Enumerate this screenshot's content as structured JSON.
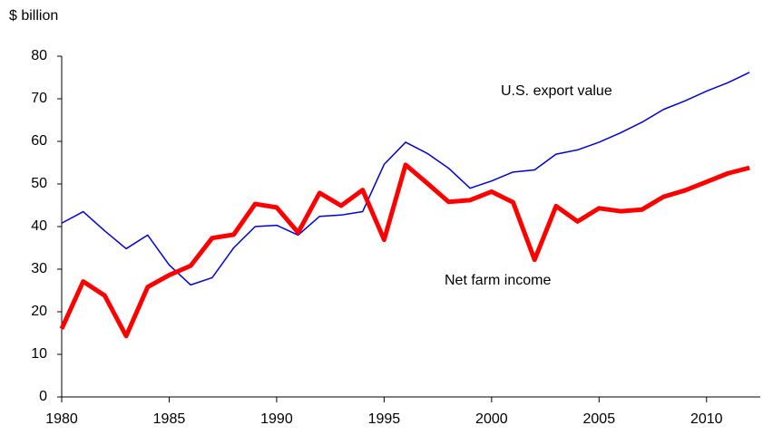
{
  "chart_data": {
    "type": "line",
    "y_label": "$ billion",
    "x": [
      1980,
      1981,
      1982,
      1983,
      1984,
      1985,
      1986,
      1987,
      1988,
      1989,
      1990,
      1991,
      1992,
      1993,
      1994,
      1995,
      1996,
      1997,
      1998,
      1999,
      2000,
      2001,
      2002,
      2003,
      2004,
      2005,
      2006,
      2007,
      2008,
      2009,
      2010,
      2011,
      2012
    ],
    "series": [
      {
        "name": "U.S. export value",
        "color": "#0000dd",
        "width": 1.5,
        "values": [
          40.8,
          43.5,
          39,
          34.8,
          38,
          31,
          26.3,
          28,
          35,
          40,
          40.3,
          38,
          42.4,
          42.7,
          43.5,
          54.6,
          59.8,
          57.2,
          53.7,
          49,
          50.7,
          52.8,
          53.3,
          57,
          58,
          59.8,
          62,
          64.5,
          67.5,
          69.5,
          71.8,
          73.8,
          76.2
        ]
      },
      {
        "name": "Net farm income",
        "color": "#ff0000",
        "width": 5,
        "values": [
          16,
          27.1,
          23.8,
          14.3,
          25.8,
          28.6,
          30.8,
          37.3,
          38.1,
          45.3,
          44.5,
          38.6,
          47.9,
          44.9,
          48.6,
          36.9,
          54.5,
          50.2,
          45.8,
          46.2,
          48.2,
          45.7,
          32.2,
          44.8,
          41.2,
          44.3,
          43.6,
          44,
          47,
          48.5,
          50.5,
          52.5,
          53.8
        ]
      }
    ],
    "xlim": [
      1980,
      2012.5
    ],
    "xticks": [
      1980,
      1985,
      1990,
      1995,
      2000,
      2005,
      2010
    ],
    "ylim": [
      0,
      80
    ],
    "yticks": [
      0,
      10,
      20,
      30,
      40,
      50,
      60,
      70,
      80
    ],
    "grid": false
  }
}
